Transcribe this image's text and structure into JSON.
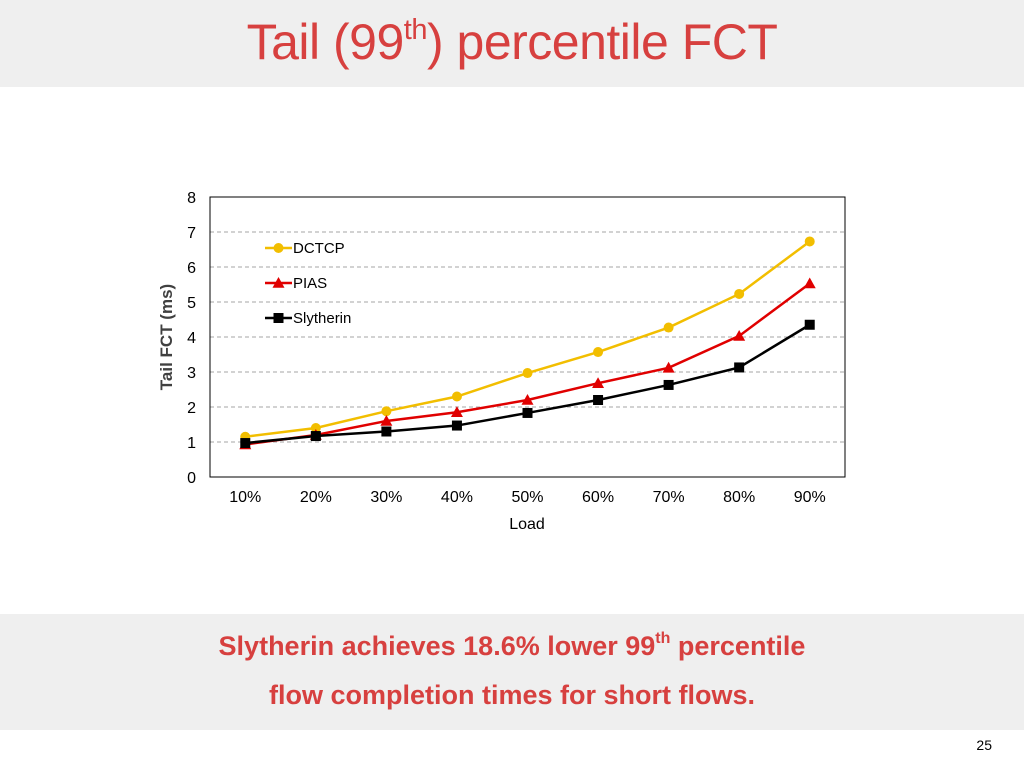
{
  "slide": {
    "title_before": "Tail (99",
    "title_sup": "th",
    "title_after": ") percentile FCT",
    "claim_line1_before": "Slytherin achieves 18.6% lower 99",
    "claim_line1_sup": "th",
    "claim_line1_after": " percentile",
    "claim_line2": "flow completion times for short flows.",
    "page_number": "25"
  },
  "colors": {
    "title": "#d7403f",
    "DCTCP": "#f2be00",
    "PIAS": "#e00000",
    "Slytherin": "#000000"
  },
  "chart_data": {
    "type": "line",
    "xlabel": "Load",
    "ylabel": "Tail FCT (ms)",
    "categories": [
      "10%",
      "20%",
      "30%",
      "40%",
      "50%",
      "60%",
      "70%",
      "80%",
      "90%"
    ],
    "ylim": [
      0,
      8
    ],
    "yticks": [
      "0",
      "1",
      "2",
      "3",
      "4",
      "5",
      "6",
      "7",
      "8"
    ],
    "grid": "horizontal dashed",
    "legend_position": "top-left",
    "series": [
      {
        "name": "DCTCP",
        "marker": "circle",
        "values": [
          1.15,
          1.4,
          1.88,
          2.3,
          2.97,
          3.57,
          4.27,
          5.23,
          6.73
        ]
      },
      {
        "name": "PIAS",
        "marker": "triangle",
        "values": [
          0.93,
          1.2,
          1.6,
          1.85,
          2.2,
          2.68,
          3.12,
          4.03,
          5.53
        ]
      },
      {
        "name": "Slytherin",
        "marker": "square",
        "values": [
          0.97,
          1.17,
          1.3,
          1.47,
          1.83,
          2.2,
          2.63,
          3.13,
          4.35
        ]
      }
    ]
  }
}
